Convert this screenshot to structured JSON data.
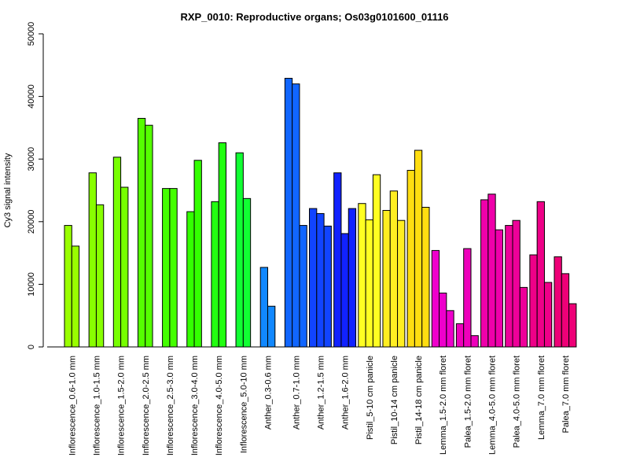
{
  "chart_data": {
    "type": "bar",
    "title": "RXP_0010: Reproductive organs; Os03g0101600_01116",
    "ylabel": "Cy3 signal intensity",
    "xlabel": "",
    "ylim": [
      0,
      50000
    ],
    "yticks": [
      0,
      10000,
      20000,
      30000,
      40000,
      50000
    ],
    "grid": false,
    "legend": "none",
    "groups": [
      {
        "label": "Inflorescence_0.6-1.0 mm",
        "color": "#99FF00",
        "values": [
          19400,
          16100
        ]
      },
      {
        "label": "Inflorescence_1.0-1.5 mm",
        "color": "#88FF00",
        "values": [
          27800,
          22700
        ]
      },
      {
        "label": "Inflorescence_1.5-2.0 mm",
        "color": "#77FF00",
        "values": [
          30300,
          25500
        ]
      },
      {
        "label": "Inflorescence_2.0-2.5 mm",
        "color": "#55FF00",
        "values": [
          36500,
          35400
        ]
      },
      {
        "label": "Inflorescence_2.5-3.0 mm",
        "color": "#44FF00",
        "values": [
          25300,
          25300
        ]
      },
      {
        "label": "Inflorescence_3.0-4.0 mm",
        "color": "#33FF00",
        "values": [
          21600,
          29800
        ]
      },
      {
        "label": "Inflorescence_4.0-5.0 mm",
        "color": "#22FF11",
        "values": [
          23200,
          32600
        ]
      },
      {
        "label": "Inflorescence_5.0-10 mm",
        "color": "#11FF33",
        "values": [
          31000,
          23700
        ]
      },
      {
        "label": "Anther_0.3-0.6 mm",
        "color": "#1188FF",
        "values": [
          12700,
          6500
        ]
      },
      {
        "label": "Anther_0.7-1.0 mm",
        "color": "#1166FF",
        "values": [
          42900,
          42000,
          19400
        ]
      },
      {
        "label": "Anther_1.2-1.5 mm",
        "color": "#1144FF",
        "values": [
          22100,
          21300,
          19300
        ]
      },
      {
        "label": "Anther_1.6-2.0 mm",
        "color": "#1122FF",
        "values": [
          27800,
          18100,
          22100
        ]
      },
      {
        "label": "Pistil_5-10 cm panicle",
        "color": "#FFFF22",
        "values": [
          22900,
          20300,
          27500
        ]
      },
      {
        "label": "Pistil_10-14 cm panicle",
        "color": "#FFEE22",
        "values": [
          21800,
          24900,
          20200
        ]
      },
      {
        "label": "Pistil_14-18 cm panicle",
        "color": "#FFDD11",
        "values": [
          28200,
          31400,
          22300
        ]
      },
      {
        "label": "Lemma_1.5-2.0 mm floret",
        "color": "#EE00CC",
        "values": [
          15400,
          8600,
          5800
        ]
      },
      {
        "label": "Palea_1.5-2.0 mm floret",
        "color": "#EE00BB",
        "values": [
          3700,
          15700,
          1800
        ]
      },
      {
        "label": "Lemma_4.0-5.0 mm floret",
        "color": "#EE00AA",
        "values": [
          23500,
          24400,
          18700
        ]
      },
      {
        "label": "Palea_4.0-5.0 mm floret",
        "color": "#EE0099",
        "values": [
          19400,
          20200,
          9500
        ]
      },
      {
        "label": "Lemma_7.0 mm floret",
        "color": "#EE0088",
        "values": [
          14700,
          23200,
          10300
        ]
      },
      {
        "label": "Palea_7.0 mm floret",
        "color": "#EE0077",
        "values": [
          14400,
          11700,
          6900
        ]
      }
    ]
  }
}
